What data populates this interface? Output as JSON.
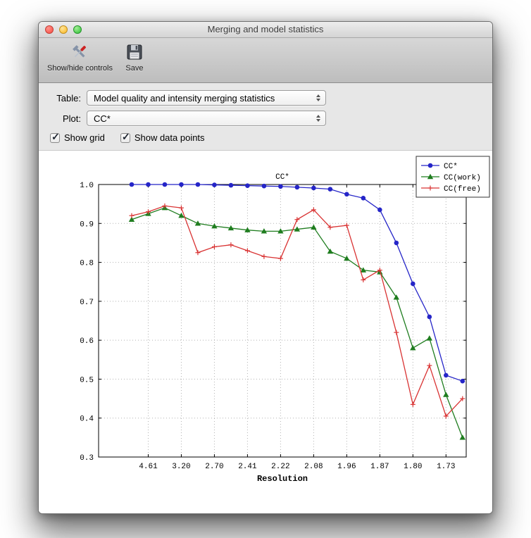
{
  "window": {
    "title": "Merging and model statistics"
  },
  "toolbar": {
    "items": [
      {
        "label": "Show/hide controls",
        "icon": "tools-icon"
      },
      {
        "label": "Save",
        "icon": "save-icon"
      }
    ]
  },
  "controls": {
    "table_label": "Table:",
    "table_value": "Model quality and intensity merging statistics",
    "plot_label": "Plot:",
    "plot_value": "CC*",
    "show_grid_label": "Show grid",
    "show_grid_checked": true,
    "show_data_points_label": "Show data points",
    "show_data_points_checked": true
  },
  "chart_data": {
    "type": "line",
    "title": "CC*",
    "xlabel": "Resolution",
    "ylabel": "",
    "ylim": [
      0.3,
      1.0
    ],
    "yticks": [
      0.3,
      0.4,
      0.5,
      0.6,
      0.7,
      0.8,
      0.9,
      1.0
    ],
    "xtick_labels": [
      "4.61",
      "3.20",
      "2.70",
      "2.41",
      "2.22",
      "2.08",
      "1.96",
      "1.87",
      "1.80",
      "1.73"
    ],
    "xtick_indices": [
      1,
      3,
      5,
      7,
      9,
      11,
      13,
      15,
      17,
      19
    ],
    "grid": true,
    "legend_position": "upper right",
    "series": [
      {
        "name": "CC*",
        "color": "#2525c8",
        "marker": "circle",
        "values": [
          1.0,
          1.0,
          1.0,
          1.0,
          1.0,
          0.999,
          0.998,
          0.997,
          0.996,
          0.995,
          0.993,
          0.991,
          0.988,
          0.975,
          0.965,
          0.935,
          0.85,
          0.745,
          0.66,
          0.51,
          0.495
        ]
      },
      {
        "name": "CC(work)",
        "color": "#1f7d1f",
        "marker": "triangle",
        "values": [
          0.91,
          0.925,
          0.94,
          0.92,
          0.9,
          0.893,
          0.888,
          0.883,
          0.88,
          0.88,
          0.885,
          0.89,
          0.828,
          0.81,
          0.78,
          0.775,
          0.71,
          0.58,
          0.605,
          0.46,
          0.35
        ]
      },
      {
        "name": "CC(free)",
        "color": "#d93333",
        "marker": "plus",
        "values": [
          0.92,
          0.93,
          0.945,
          0.94,
          0.825,
          0.84,
          0.845,
          0.83,
          0.815,
          0.81,
          0.91,
          0.935,
          0.89,
          0.895,
          0.755,
          0.78,
          0.62,
          0.435,
          0.535,
          0.405,
          0.45
        ]
      }
    ]
  }
}
